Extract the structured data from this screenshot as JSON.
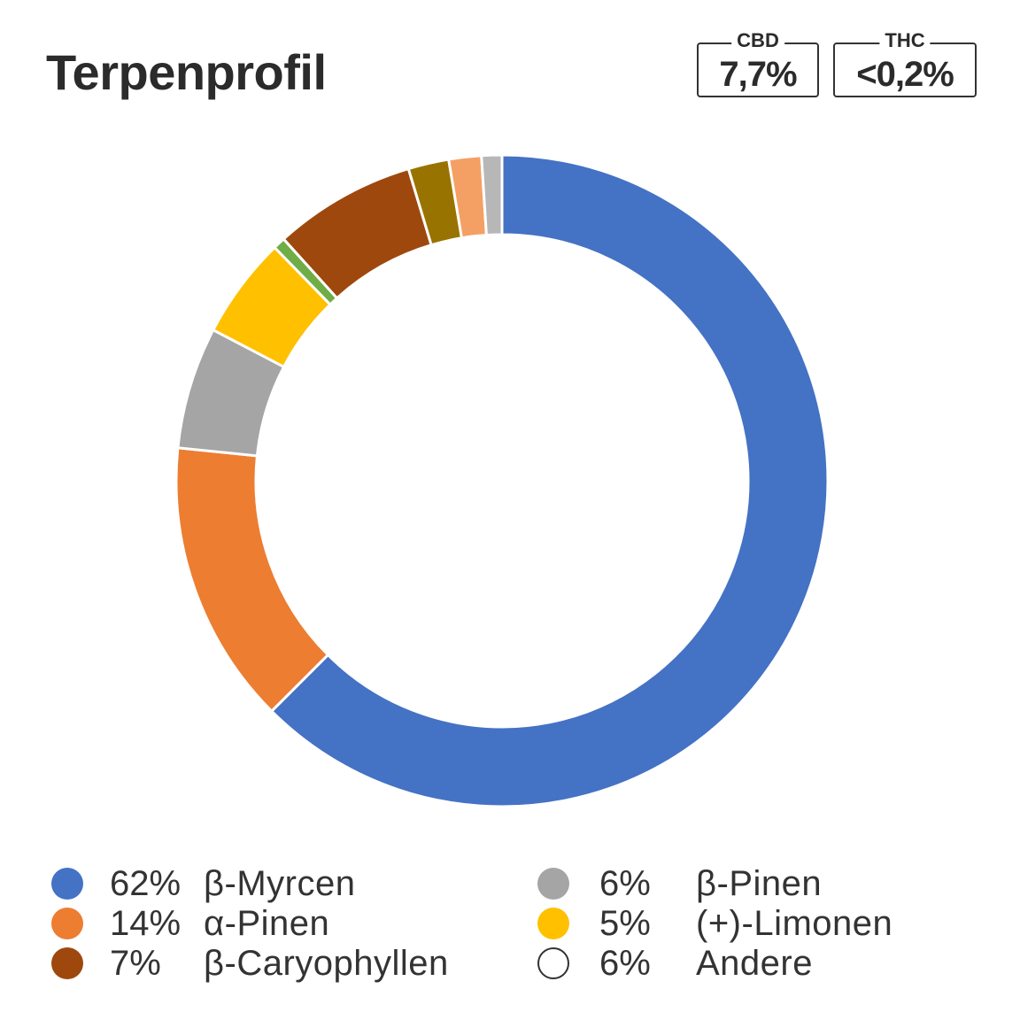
{
  "title": "Terpenprofil",
  "badges": {
    "cbd": {
      "label": "CBD",
      "value": "7,7%"
    },
    "thc": {
      "label": "THC",
      "value": "<0,2%"
    }
  },
  "colors": {
    "myrcen": "#4472c4",
    "alpha_pinen": "#ed7d31",
    "caryophyllen": "#9e480e",
    "beta_pinen": "#a5a5a5",
    "limonen": "#ffc000",
    "andere": "#ffffff"
  },
  "legend": [
    {
      "pct": "62%",
      "name": "β-Myrcen",
      "color": "#4472c4"
    },
    {
      "pct": "14%",
      "name": "α-Pinen",
      "color": "#ed7d31"
    },
    {
      "pct": "7%",
      "name": "β-Caryophyllen",
      "color": "#9e480e"
    },
    {
      "pct": "6%",
      "name": "β-Pinen",
      "color": "#a5a5a5"
    },
    {
      "pct": "5%",
      "name": "(+)-Limonen",
      "color": "#ffc000"
    },
    {
      "pct": "6%",
      "name": "Andere",
      "color": "#ffffff"
    }
  ],
  "chart_data": {
    "type": "pie",
    "title": "Terpenprofil",
    "donut": true,
    "start_angle": "top, clockwise",
    "slices": [
      {
        "label": "β-Myrcen",
        "value": 62.0,
        "color": "#4472c4"
      },
      {
        "label": "α-Pinen",
        "value": 14.0,
        "color": "#ed7d31"
      },
      {
        "label": "β-Pinen",
        "value": 6.0,
        "color": "#a5a5a5"
      },
      {
        "label": "(+)-Limonen",
        "value": 5.0,
        "color": "#ffc000"
      },
      {
        "label": "",
        "value": 0.6,
        "color": "#70ad47"
      },
      {
        "label": "β-Caryophyllen",
        "value": 7.0,
        "color": "#9e480e"
      },
      {
        "label": "",
        "value": 2.0,
        "color": "#997300"
      },
      {
        "label": "",
        "value": 1.6,
        "color": "#f4a064"
      },
      {
        "label": "",
        "value": 1.0,
        "color": "#b7b7b7"
      }
    ]
  }
}
